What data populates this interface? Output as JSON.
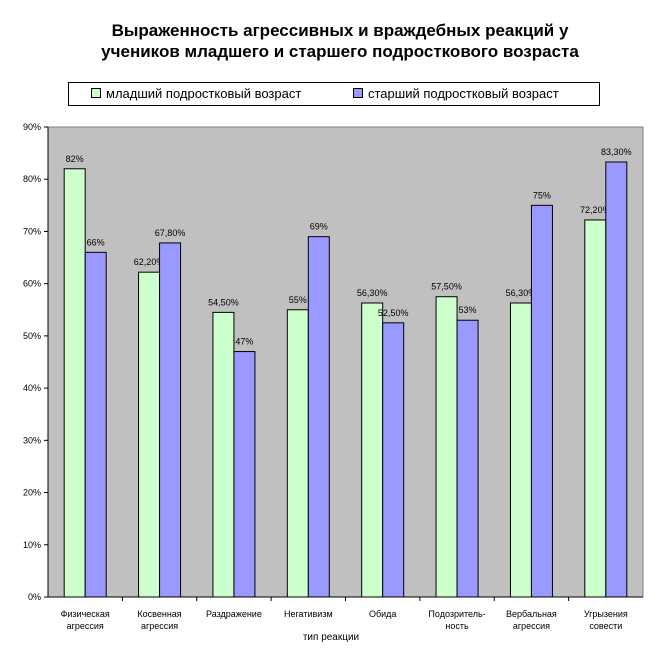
{
  "chart_data": {
    "type": "bar",
    "title_lines": [
      "Выраженность агрессивных и враждебных реакций у",
      "учеников младшего и старшего подросткового возраста"
    ],
    "xlabel": "тип реакции",
    "ylabel": "",
    "ylim": [
      0,
      90
    ],
    "y_ticks": [
      "0%",
      "10%",
      "20%",
      "30%",
      "40%",
      "50%",
      "60%",
      "70%",
      "80%",
      "90%"
    ],
    "grid": false,
    "legend_position": "top",
    "plot_background": "#c0c0c0",
    "categories": [
      [
        "Физическая",
        "агрессия"
      ],
      [
        "Косвенная",
        "агрессия"
      ],
      [
        "Раздражение"
      ],
      [
        "Негативизм"
      ],
      [
        "Обида"
      ],
      [
        "Подозритель-",
        "ность"
      ],
      [
        "Вербальная",
        "агрессия"
      ],
      [
        "Угрызения",
        "совести"
      ]
    ],
    "series": [
      {
        "name": "младший подростковый возраст",
        "color": "#ccffcc",
        "values": [
          82,
          62.2,
          54.5,
          55,
          56.3,
          57.5,
          56.3,
          72.2
        ],
        "labels": [
          "82%",
          "62,20%",
          "54,50%",
          "55%",
          "56,30%",
          "57,50%",
          "56,30%",
          "72,20%"
        ]
      },
      {
        "name": "старший подростковый возраст",
        "color": "#9999ff",
        "values": [
          66,
          67.8,
          47,
          69,
          52.5,
          53,
          75,
          83.3
        ],
        "labels": [
          "66%",
          "67,80%",
          "47%",
          "69%",
          "52,50%",
          "53%",
          "75%",
          "83,30%"
        ]
      }
    ]
  }
}
